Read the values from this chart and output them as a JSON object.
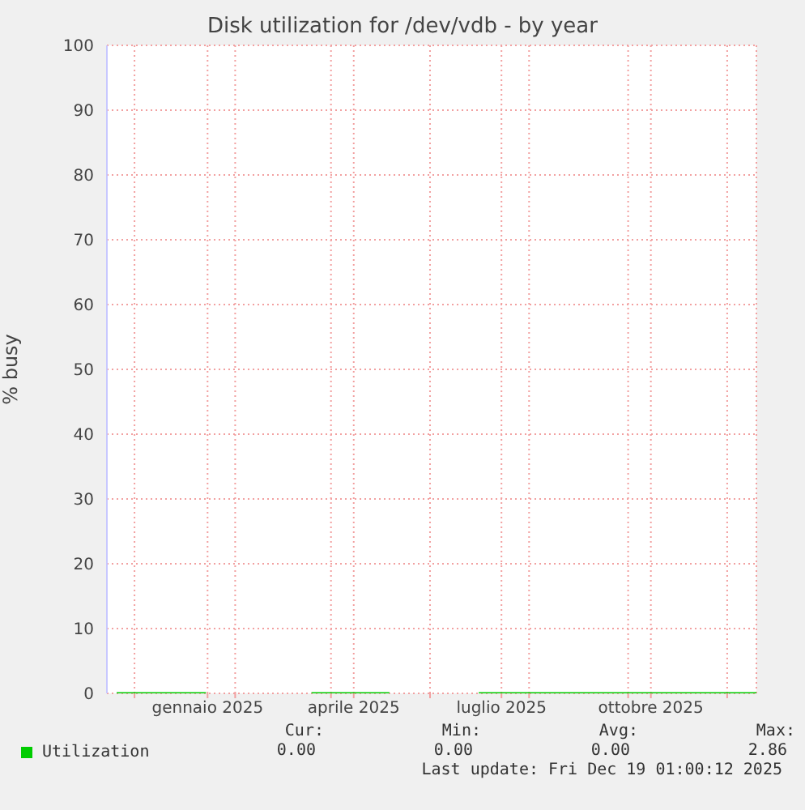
{
  "chart_data": {
    "type": "line",
    "title": "Disk utilization for /dev/vdb - by year",
    "ylabel": "% busy",
    "x": [
      "2024-11-20",
      "2024-12-15",
      "2025-01-14",
      "2025-02-22",
      "2025-03-20",
      "2025-05-07",
      "2025-05-30",
      "2025-07-01",
      "2025-08-15",
      "2025-10-01",
      "2025-11-15",
      "2025-12-19"
    ],
    "series": [
      {
        "name": "Utilization",
        "color": "#00cc00",
        "values": [
          0,
          0,
          0,
          null,
          0,
          0,
          null,
          0,
          0,
          0,
          0,
          0
        ]
      }
    ],
    "xlim": [
      "2024-11-14",
      "2025-12-19"
    ],
    "xticks": [
      {
        "value": "2024-12-01",
        "label": null
      },
      {
        "value": "2025-01-15",
        "label": "gennaio 2025"
      },
      {
        "value": "2025-02-01",
        "label": null
      },
      {
        "value": "2025-04-01",
        "label": null
      },
      {
        "value": "2025-04-15",
        "label": "aprile 2025"
      },
      {
        "value": "2025-06-01",
        "label": null
      },
      {
        "value": "2025-07-15",
        "label": "luglio 2025"
      },
      {
        "value": "2025-08-01",
        "label": null
      },
      {
        "value": "2025-10-01",
        "label": null
      },
      {
        "value": "2025-10-15",
        "label": "ottobre 2025"
      },
      {
        "value": "2025-12-01",
        "label": null
      }
    ],
    "ylim": [
      0,
      100
    ],
    "yticks": [
      0,
      10,
      20,
      30,
      40,
      50,
      60,
      70,
      80,
      90,
      100
    ],
    "grid": true,
    "legend": "bottom",
    "marker": "none",
    "line_style": "solid",
    "annotations": [
      "Cur:",
      "Min:",
      "Avg:",
      "Max:",
      "0.00",
      "0.00",
      "0.00",
      "2.86",
      "Last update: Fri Dec 19 01:00:12 2025"
    ]
  }
}
